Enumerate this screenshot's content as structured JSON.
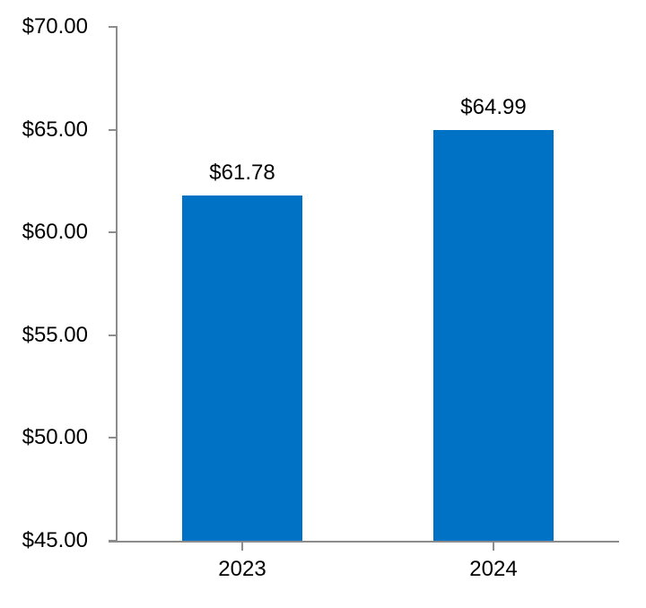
{
  "chart_data": {
    "type": "bar",
    "categories": [
      "2023",
      "2024"
    ],
    "values": [
      61.78,
      64.99
    ],
    "value_labels": [
      "$61.78",
      "$64.99"
    ],
    "y_ticks": [
      45,
      50,
      55,
      60,
      65,
      70
    ],
    "y_tick_labels": [
      "$45.00",
      "$50.00",
      "$55.00",
      "$60.00",
      "$65.00",
      "$70.00"
    ],
    "ylim": [
      45,
      70
    ],
    "xlabel": "",
    "ylabel": "",
    "title": "",
    "grid": "off",
    "legend": "none",
    "colors": {
      "bar": "#0072C6",
      "axis": "#8C8C8C",
      "text": "#000000",
      "background": "#FFFFFF"
    }
  }
}
